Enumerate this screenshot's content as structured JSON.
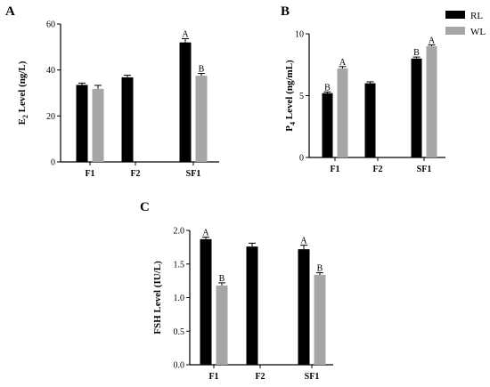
{
  "figure": {
    "legend": [
      {
        "name": "RL",
        "color": "#000000"
      },
      {
        "name": "WL",
        "color": "#a6a6a6"
      }
    ]
  },
  "chart_data": [
    {
      "panel": "A",
      "type": "bar",
      "ylabel_main": "E",
      "ylabel_sub": "2",
      "ylabel_rest": " Level (ng/L)",
      "ylim": [
        0,
        60
      ],
      "yticks": [
        0,
        20,
        40,
        60
      ],
      "categories": [
        "F1",
        "F2",
        "SF1"
      ],
      "series": [
        {
          "name": "RL",
          "values": [
            33.5,
            36.8,
            52.0
          ],
          "errors": [
            0.8,
            0.9,
            1.6
          ],
          "labels": [
            "",
            "",
            "A"
          ]
        },
        {
          "name": "WL",
          "values": [
            31.8,
            null,
            37.5
          ],
          "errors": [
            1.5,
            null,
            1.0
          ],
          "labels": [
            "",
            "",
            "B"
          ]
        }
      ]
    },
    {
      "panel": "B",
      "type": "bar",
      "ylabel_main": "P",
      "ylabel_sub": "4",
      "ylabel_rest": " Level (ng/mL)",
      "ylim": [
        0,
        10
      ],
      "yticks": [
        0,
        5,
        10
      ],
      "categories": [
        "F1",
        "F2",
        "SF1"
      ],
      "series": [
        {
          "name": "RL",
          "values": [
            5.2,
            6.0,
            8.0
          ],
          "errors": [
            0.1,
            0.12,
            0.12
          ],
          "labels": [
            "B",
            "",
            "B"
          ]
        },
        {
          "name": "WL",
          "values": [
            7.2,
            null,
            9.0
          ],
          "errors": [
            0.15,
            null,
            0.1
          ],
          "labels": [
            "A",
            "",
            "A"
          ]
        }
      ]
    },
    {
      "panel": "C",
      "type": "bar",
      "ylabel_main": "FSH Level (IU/L)",
      "ylabel_sub": "",
      "ylabel_rest": "",
      "ylim": [
        0,
        2.0
      ],
      "yticks": [
        0.0,
        0.5,
        1.0,
        1.5,
        2.0
      ],
      "ytick_decimals": 1,
      "categories": [
        "F1",
        "F2",
        "SF1"
      ],
      "series": [
        {
          "name": "RL",
          "values": [
            1.87,
            1.76,
            1.72
          ],
          "errors": [
            0.03,
            0.05,
            0.06
          ],
          "labels": [
            "A",
            "",
            "A"
          ]
        },
        {
          "name": "WL",
          "values": [
            1.18,
            null,
            1.34
          ],
          "errors": [
            0.04,
            null,
            0.03
          ],
          "labels": [
            "B",
            "",
            "B"
          ]
        }
      ]
    }
  ]
}
